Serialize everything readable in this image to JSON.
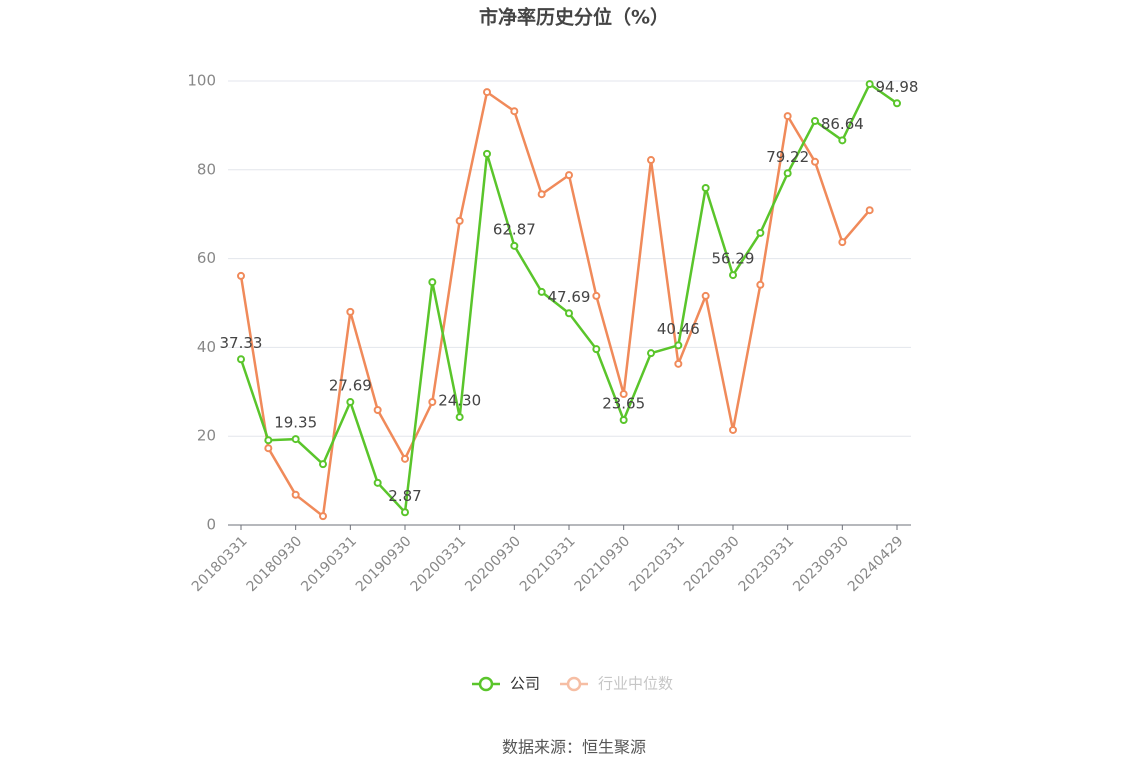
{
  "chart_data": {
    "type": "line",
    "title": "市净率历史分位（%）",
    "categories": [
      "20180331",
      null,
      "20180930",
      null,
      "20190331",
      null,
      "20190930",
      null,
      "20200331",
      null,
      "20200930",
      null,
      "20210331",
      null,
      "20210930",
      null,
      "20220331",
      null,
      "20220930",
      null,
      "20230331",
      null,
      "20230930",
      null,
      "20240429"
    ],
    "series": [
      {
        "name": "公司",
        "color": "#5ac52b",
        "values": [
          37.33,
          19.1,
          19.35,
          13.7,
          27.69,
          9.5,
          2.87,
          54.7,
          24.3,
          83.6,
          62.87,
          52.5,
          47.69,
          39.6,
          23.65,
          38.7,
          40.46,
          75.9,
          56.29,
          65.8,
          79.22,
          91.0,
          86.64,
          99.3,
          94.98
        ],
        "value_labels": [
          "37.33",
          null,
          "19.35",
          null,
          "27.69",
          null,
          "2.87",
          null,
          "24.30",
          null,
          "62.87",
          null,
          "47.69",
          null,
          "23.65",
          null,
          "40.46",
          null,
          "56.29",
          null,
          "79.22",
          null,
          "86.64",
          null,
          "94.98"
        ]
      },
      {
        "name": "行业中位数",
        "color": "#f08a5a",
        "values": [
          56.1,
          17.3,
          6.8,
          2.0,
          48.0,
          25.9,
          14.9,
          27.7,
          68.5,
          97.5,
          93.2,
          74.5,
          78.8,
          51.6,
          29.5,
          82.2,
          36.3,
          51.6,
          21.4,
          54.1,
          92.1,
          81.8,
          63.7,
          70.9,
          null
        ]
      }
    ],
    "ylim": [
      0,
      100
    ],
    "yticks": [
      0,
      20,
      40,
      60,
      80,
      100
    ],
    "grid": true,
    "source": "数据来源：恒生聚源"
  }
}
